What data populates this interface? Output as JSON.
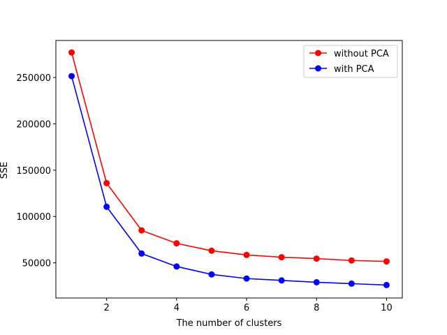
{
  "chart_data": {
    "type": "line",
    "title": "",
    "xlabel": "The number of clusters",
    "ylabel": "SSE",
    "xlim": [
      0.55,
      10.45
    ],
    "ylim": [
      12000,
      290000
    ],
    "xticks": [
      2,
      4,
      6,
      8,
      10
    ],
    "yticks": [
      50000,
      100000,
      150000,
      200000,
      250000
    ],
    "grid": false,
    "legend_position": "top-right",
    "x": [
      1,
      2,
      3,
      4,
      5,
      6,
      7,
      8,
      9,
      10
    ],
    "series": [
      {
        "name": "without PCA",
        "color": "#ff0000",
        "values": [
          277000,
          136000,
          85000,
          71000,
          63000,
          58500,
          56000,
          54500,
          52500,
          51500
        ]
      },
      {
        "name": "with PCA",
        "color": "#0000ff",
        "values": [
          251500,
          110500,
          60000,
          46000,
          37500,
          33000,
          31000,
          29000,
          27500,
          26000
        ]
      }
    ]
  }
}
